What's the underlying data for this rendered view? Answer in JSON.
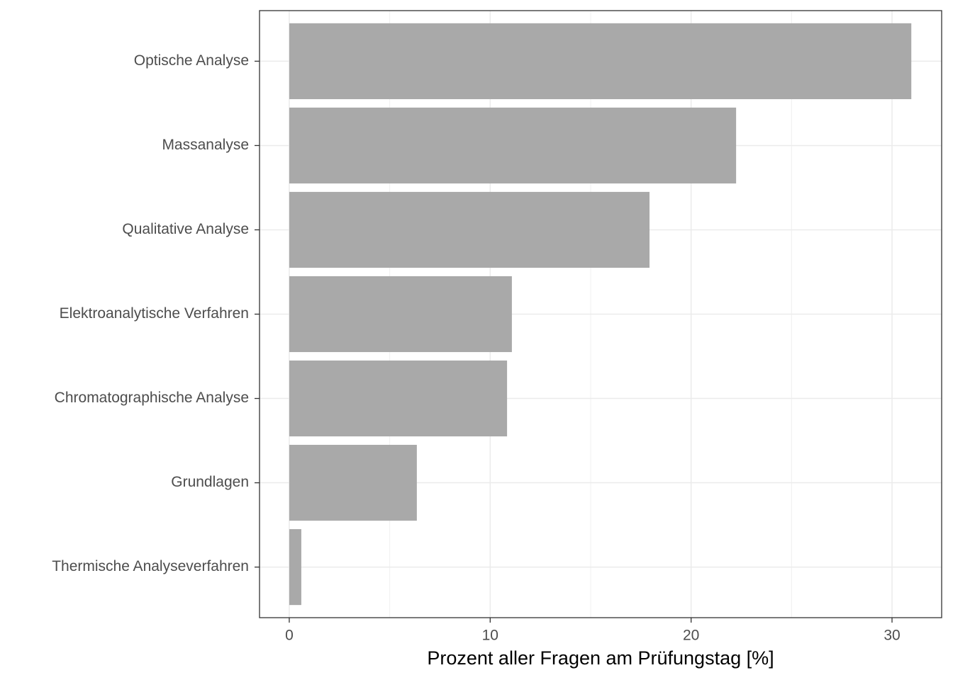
{
  "chart_data": {
    "type": "bar",
    "orientation": "horizontal",
    "x_label": "Prozent aller Fragen am Prüfungstag [%]",
    "categories": [
      "Optische Analyse",
      "Massanalyse",
      "Qualitative Analyse",
      "Elektroanalytische Verfahren",
      "Chromatographische Analyse",
      "Grundlagen",
      "Thermische Analyseverfahren"
    ],
    "values": [
      30.96,
      22.24,
      17.93,
      11.08,
      10.84,
      6.35,
      0.6
    ],
    "color": "#a9a9a9",
    "xlim": [
      -1.48,
      32.47
    ],
    "xticks": [
      0,
      10,
      20,
      30
    ],
    "grid": true
  }
}
